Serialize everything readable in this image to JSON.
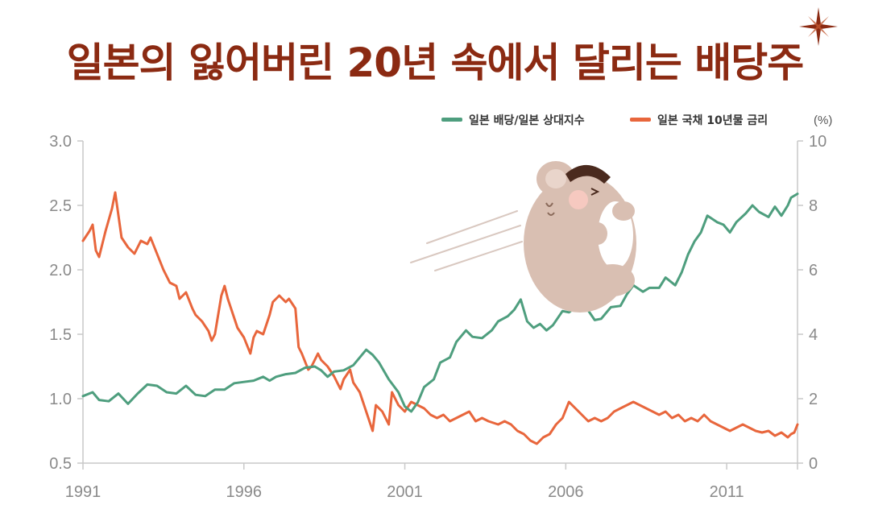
{
  "title": "일본의 잃어버린 20년 속에서 달리는 배당주",
  "legend": {
    "series1": "일본 배당/일본 상대지수",
    "series2": "일본 국채 10년물 금리",
    "unit": "(%)"
  },
  "colors": {
    "title": "#8b2a12",
    "series1": "#4e9e7e",
    "series2": "#e8663c",
    "axis": "#c9c9c9",
    "tick": "#8a8a8a"
  },
  "decoration": {
    "mascot": "bear-mascot-icon",
    "sparkle": "sparkle-icon"
  },
  "chart_data": {
    "type": "line",
    "title": "일본의 잃어버린 20년 속에서 달리는 배당주",
    "xlim": [
      1991,
      2013.2
    ],
    "x_ticks": [
      "1991",
      "1996",
      "2001",
      "2006",
      "2011"
    ],
    "y_left": {
      "range": [
        0.5,
        3.0
      ],
      "ticks": [
        "0.5",
        "1.0",
        "1.5",
        "2.0",
        "2.5",
        "3.0"
      ]
    },
    "y_right": {
      "range": [
        0,
        10
      ],
      "ticks": [
        "0",
        "2",
        "4",
        "6",
        "8",
        "10"
      ]
    },
    "series": [
      {
        "name": "일본 배당/일본 상대지수",
        "axis": "left",
        "points": [
          [
            1991.0,
            1.02
          ],
          [
            1991.3,
            1.05
          ],
          [
            1991.5,
            0.99
          ],
          [
            1991.8,
            0.98
          ],
          [
            1992.1,
            1.04
          ],
          [
            1992.4,
            0.96
          ],
          [
            1992.7,
            1.04
          ],
          [
            1993.0,
            1.11
          ],
          [
            1993.3,
            1.1
          ],
          [
            1993.6,
            1.05
          ],
          [
            1993.9,
            1.04
          ],
          [
            1994.2,
            1.1
          ],
          [
            1994.5,
            1.03
          ],
          [
            1994.8,
            1.02
          ],
          [
            1995.1,
            1.07
          ],
          [
            1995.4,
            1.07
          ],
          [
            1995.7,
            1.12
          ],
          [
            1996.0,
            1.13
          ],
          [
            1996.3,
            1.14
          ],
          [
            1996.6,
            1.17
          ],
          [
            1996.8,
            1.14
          ],
          [
            1997.0,
            1.17
          ],
          [
            1997.3,
            1.19
          ],
          [
            1997.6,
            1.2
          ],
          [
            1997.9,
            1.24
          ],
          [
            1998.2,
            1.25
          ],
          [
            1998.4,
            1.22
          ],
          [
            1998.6,
            1.17
          ],
          [
            1998.8,
            1.21
          ],
          [
            1999.1,
            1.22
          ],
          [
            1999.4,
            1.26
          ],
          [
            1999.6,
            1.32
          ],
          [
            1999.8,
            1.38
          ],
          [
            2000.0,
            1.34
          ],
          [
            2000.2,
            1.28
          ],
          [
            2000.5,
            1.15
          ],
          [
            2000.8,
            1.05
          ],
          [
            2001.0,
            0.94
          ],
          [
            2001.2,
            0.9
          ],
          [
            2001.4,
            0.97
          ],
          [
            2001.6,
            1.09
          ],
          [
            2001.9,
            1.15
          ],
          [
            2002.1,
            1.28
          ],
          [
            2002.4,
            1.32
          ],
          [
            2002.6,
            1.44
          ],
          [
            2002.9,
            1.53
          ],
          [
            2003.1,
            1.48
          ],
          [
            2003.4,
            1.47
          ],
          [
            2003.7,
            1.53
          ],
          [
            2003.9,
            1.6
          ],
          [
            2004.2,
            1.64
          ],
          [
            2004.4,
            1.69
          ],
          [
            2004.6,
            1.77
          ],
          [
            2004.8,
            1.6
          ],
          [
            2005.0,
            1.55
          ],
          [
            2005.2,
            1.58
          ],
          [
            2005.4,
            1.53
          ],
          [
            2005.6,
            1.57
          ],
          [
            2005.9,
            1.68
          ],
          [
            2006.1,
            1.67
          ],
          [
            2006.4,
            1.73
          ],
          [
            2006.6,
            1.72
          ],
          [
            2006.9,
            1.61
          ],
          [
            2007.1,
            1.62
          ],
          [
            2007.4,
            1.71
          ],
          [
            2007.7,
            1.72
          ],
          [
            2007.9,
            1.81
          ],
          [
            2008.1,
            1.88
          ],
          [
            2008.4,
            1.83
          ],
          [
            2008.6,
            1.86
          ],
          [
            2008.9,
            1.86
          ],
          [
            2009.1,
            1.94
          ],
          [
            2009.4,
            1.88
          ],
          [
            2009.6,
            1.98
          ],
          [
            2009.8,
            2.12
          ],
          [
            2010.0,
            2.22
          ],
          [
            2010.2,
            2.29
          ],
          [
            2010.4,
            2.42
          ],
          [
            2010.7,
            2.37
          ],
          [
            2010.9,
            2.35
          ],
          [
            2011.1,
            2.29
          ],
          [
            2011.3,
            2.37
          ],
          [
            2011.6,
            2.44
          ],
          [
            2011.8,
            2.5
          ],
          [
            2012.0,
            2.45
          ],
          [
            2012.3,
            2.41
          ],
          [
            2012.5,
            2.49
          ],
          [
            2012.7,
            2.42
          ],
          [
            2012.9,
            2.5
          ],
          [
            2013.0,
            2.56
          ],
          [
            2013.2,
            2.59
          ]
        ]
      },
      {
        "name": "일본 국채 10년물 금리",
        "axis": "right",
        "points": [
          [
            1991.0,
            6.9
          ],
          [
            1991.2,
            7.2
          ],
          [
            1991.3,
            7.4
          ],
          [
            1991.4,
            6.6
          ],
          [
            1991.5,
            6.4
          ],
          [
            1991.7,
            7.2
          ],
          [
            1991.9,
            7.9
          ],
          [
            1992.0,
            8.4
          ],
          [
            1992.2,
            7.0
          ],
          [
            1992.4,
            6.7
          ],
          [
            1992.6,
            6.5
          ],
          [
            1992.8,
            6.9
          ],
          [
            1993.0,
            6.8
          ],
          [
            1993.1,
            7.0
          ],
          [
            1993.3,
            6.5
          ],
          [
            1993.5,
            6.0
          ],
          [
            1993.7,
            5.6
          ],
          [
            1993.9,
            5.5
          ],
          [
            1994.0,
            5.1
          ],
          [
            1994.2,
            5.3
          ],
          [
            1994.4,
            4.8
          ],
          [
            1994.5,
            4.6
          ],
          [
            1994.7,
            4.4
          ],
          [
            1994.9,
            4.1
          ],
          [
            1995.0,
            3.8
          ],
          [
            1995.1,
            4.0
          ],
          [
            1995.3,
            5.2
          ],
          [
            1995.4,
            5.5
          ],
          [
            1995.5,
            5.1
          ],
          [
            1995.6,
            4.8
          ],
          [
            1995.8,
            4.2
          ],
          [
            1996.0,
            3.9
          ],
          [
            1996.2,
            3.4
          ],
          [
            1996.3,
            3.9
          ],
          [
            1996.4,
            4.1
          ],
          [
            1996.6,
            4.0
          ],
          [
            1996.8,
            4.6
          ],
          [
            1996.9,
            5.0
          ],
          [
            1997.1,
            5.2
          ],
          [
            1997.3,
            5.0
          ],
          [
            1997.4,
            5.1
          ],
          [
            1997.6,
            4.8
          ],
          [
            1997.7,
            3.6
          ],
          [
            1997.8,
            3.4
          ],
          [
            1998.0,
            2.9
          ],
          [
            1998.1,
            3.0
          ],
          [
            1998.3,
            3.4
          ],
          [
            1998.4,
            3.2
          ],
          [
            1998.6,
            3.0
          ],
          [
            1998.8,
            2.7
          ],
          [
            1999.0,
            2.3
          ],
          [
            1999.1,
            2.6
          ],
          [
            1999.3,
            2.9
          ],
          [
            1999.4,
            2.5
          ],
          [
            1999.6,
            2.2
          ],
          [
            1999.8,
            1.6
          ],
          [
            2000.0,
            1.0
          ],
          [
            2000.1,
            1.8
          ],
          [
            2000.3,
            1.6
          ],
          [
            2000.5,
            1.2
          ],
          [
            2000.6,
            2.2
          ],
          [
            2000.8,
            1.8
          ],
          [
            2000.9,
            1.7
          ],
          [
            2001.0,
            1.6
          ],
          [
            2001.2,
            1.9
          ],
          [
            2001.4,
            1.8
          ],
          [
            2001.6,
            1.7
          ],
          [
            2001.8,
            1.5
          ],
          [
            2002.0,
            1.4
          ],
          [
            2002.2,
            1.5
          ],
          [
            2002.4,
            1.3
          ],
          [
            2002.6,
            1.4
          ],
          [
            2002.8,
            1.5
          ],
          [
            2003.0,
            1.6
          ],
          [
            2003.2,
            1.3
          ],
          [
            2003.4,
            1.4
          ],
          [
            2003.6,
            1.3
          ],
          [
            2003.9,
            1.2
          ],
          [
            2004.1,
            1.3
          ],
          [
            2004.3,
            1.2
          ],
          [
            2004.5,
            1.0
          ],
          [
            2004.7,
            0.9
          ],
          [
            2004.9,
            0.7
          ],
          [
            2005.1,
            0.6
          ],
          [
            2005.3,
            0.8
          ],
          [
            2005.5,
            0.9
          ],
          [
            2005.7,
            1.2
          ],
          [
            2005.9,
            1.4
          ],
          [
            2006.1,
            1.9
          ],
          [
            2006.3,
            1.7
          ],
          [
            2006.5,
            1.5
          ],
          [
            2006.7,
            1.3
          ],
          [
            2006.9,
            1.4
          ],
          [
            2007.1,
            1.3
          ],
          [
            2007.3,
            1.4
          ],
          [
            2007.5,
            1.6
          ],
          [
            2007.7,
            1.7
          ],
          [
            2007.9,
            1.8
          ],
          [
            2008.1,
            1.9
          ],
          [
            2008.3,
            1.8
          ],
          [
            2008.5,
            1.7
          ],
          [
            2008.7,
            1.6
          ],
          [
            2008.9,
            1.5
          ],
          [
            2009.1,
            1.6
          ],
          [
            2009.3,
            1.4
          ],
          [
            2009.5,
            1.5
          ],
          [
            2009.7,
            1.3
          ],
          [
            2009.9,
            1.4
          ],
          [
            2010.1,
            1.3
          ],
          [
            2010.3,
            1.5
          ],
          [
            2010.5,
            1.3
          ],
          [
            2010.7,
            1.2
          ],
          [
            2010.9,
            1.1
          ],
          [
            2011.1,
            1.0
          ],
          [
            2011.3,
            1.1
          ],
          [
            2011.5,
            1.2
          ],
          [
            2011.7,
            1.1
          ],
          [
            2011.9,
            1.0
          ],
          [
            2012.1,
            0.95
          ],
          [
            2012.3,
            1.0
          ],
          [
            2012.5,
            0.85
          ],
          [
            2012.7,
            0.95
          ],
          [
            2012.9,
            0.8
          ],
          [
            2013.0,
            0.9
          ],
          [
            2013.1,
            0.95
          ],
          [
            2013.2,
            1.2
          ]
        ]
      }
    ]
  }
}
